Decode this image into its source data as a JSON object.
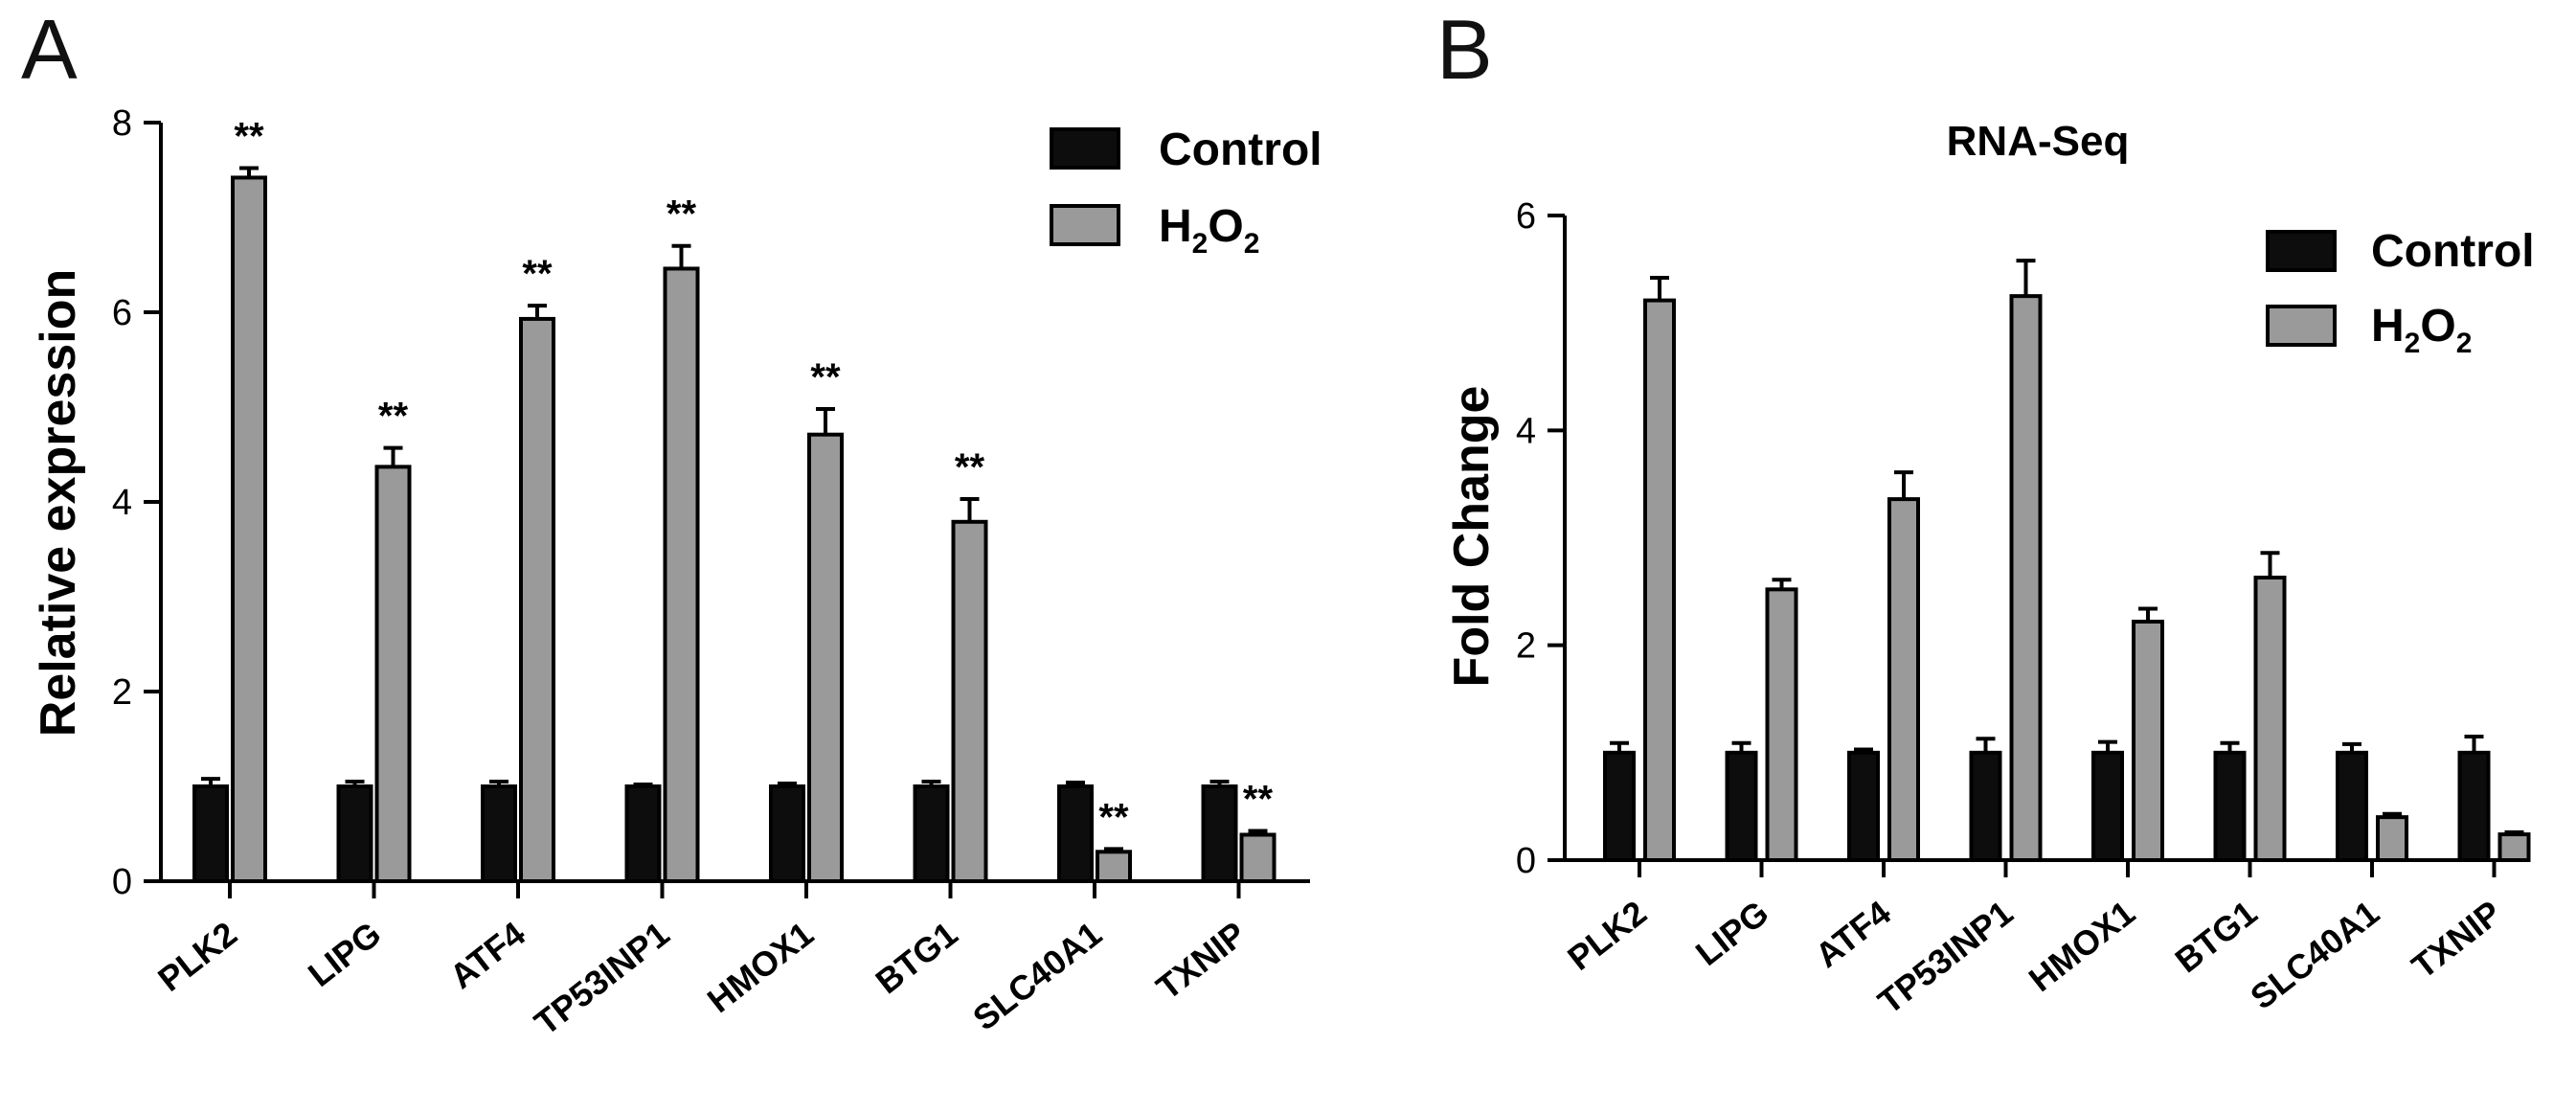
{
  "panels": [
    {
      "letter": "A",
      "legend": [
        {
          "label": "Control",
          "subscript": ""
        },
        {
          "label": "H",
          "subscript": "2",
          "label2": "O",
          "subscript2": "2"
        }
      ]
    },
    {
      "letter": "B",
      "legend": [
        {
          "label": "Control",
          "subscript": ""
        },
        {
          "label": "H",
          "subscript": "2",
          "label2": "O",
          "subscript2": "2"
        }
      ]
    }
  ],
  "colors": {
    "control": "#0d0d0d",
    "h2o2": "#9a9a9a",
    "axis": "#000000"
  },
  "chart_data": [
    {
      "type": "bar",
      "title": "",
      "xlabel": "",
      "ylabel": "Relative expression",
      "ylim": [
        0,
        8
      ],
      "yticks": [
        0,
        2,
        4,
        6,
        8
      ],
      "grid": false,
      "legend_position": "top-right",
      "categories": [
        "PLK2",
        "LIPG",
        "ATF4",
        "TP53INP1",
        "HMOX1",
        "BTG1",
        "SLC40A1",
        "TXNIP"
      ],
      "series": [
        {
          "name": "Control",
          "values": [
            1.0,
            1.0,
            1.0,
            1.0,
            1.0,
            1.0,
            1.0,
            1.0
          ],
          "errors": [
            0.08,
            0.05,
            0.05,
            0.02,
            0.03,
            0.05,
            0.04,
            0.05
          ]
        },
        {
          "name": "H2O2",
          "values": [
            7.42,
            4.37,
            5.93,
            6.46,
            4.71,
            3.79,
            0.31,
            0.49
          ],
          "errors": [
            0.1,
            0.2,
            0.14,
            0.24,
            0.27,
            0.24,
            0.03,
            0.04
          ]
        }
      ],
      "annotations": [
        "**",
        "**",
        "**",
        "**",
        "**",
        "**",
        "**",
        "**"
      ]
    },
    {
      "type": "bar",
      "title": "RNA-Seq",
      "xlabel": "",
      "ylabel": "Fold Change",
      "ylim": [
        0,
        6
      ],
      "yticks": [
        0,
        2,
        4,
        6
      ],
      "grid": false,
      "legend_position": "top-right",
      "categories": [
        "PLK2",
        "LIPG",
        "ATF4",
        "TP53INP1",
        "HMOX1",
        "BTG1",
        "SLC40A1",
        "TXNIP"
      ],
      "series": [
        {
          "name": "Control",
          "values": [
            1.0,
            1.0,
            1.0,
            1.0,
            1.0,
            1.0,
            1.0,
            1.0
          ],
          "errors": [
            0.09,
            0.09,
            0.03,
            0.13,
            0.1,
            0.09,
            0.08,
            0.15
          ]
        },
        {
          "name": "H2O2",
          "values": [
            5.21,
            2.52,
            3.36,
            5.25,
            2.22,
            2.63,
            0.4,
            0.24
          ],
          "errors": [
            0.21,
            0.09,
            0.25,
            0.33,
            0.12,
            0.23,
            0.03,
            0.02
          ]
        }
      ],
      "annotations": []
    }
  ]
}
